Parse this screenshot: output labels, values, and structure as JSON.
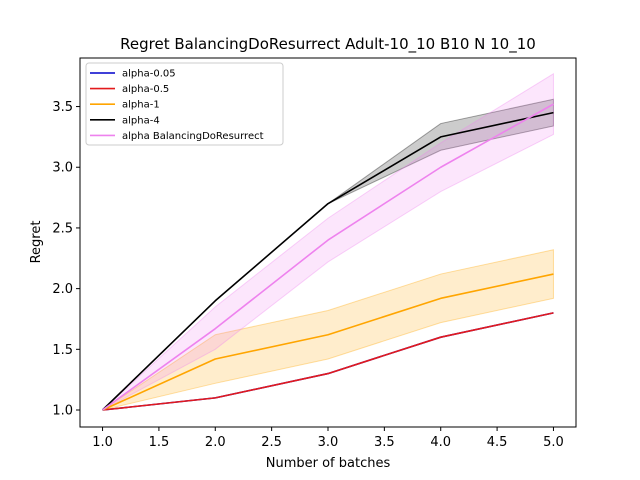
{
  "chart_data": {
    "type": "line",
    "title": "Regret BalancingDoResurrect Adult-10_10 B10 N 10_10",
    "xlabel": "Number of batches",
    "ylabel": "Regret",
    "xlim": [
      0.8,
      5.2
    ],
    "ylim": [
      0.86,
      3.9
    ],
    "xticks": [
      1.0,
      1.5,
      2.0,
      2.5,
      3.0,
      3.5,
      4.0,
      4.5,
      5.0
    ],
    "xtick_labels": [
      "1.0",
      "1.5",
      "2.0",
      "2.5",
      "3.0",
      "3.5",
      "4.0",
      "4.5",
      "5.0"
    ],
    "yticks": [
      1.0,
      1.5,
      2.0,
      2.5,
      3.0,
      3.5
    ],
    "ytick_labels": [
      "1.0",
      "1.5",
      "2.0",
      "2.5",
      "3.0",
      "3.5"
    ],
    "grid": false,
    "legend_position": "top-left",
    "x": [
      1,
      2,
      3,
      4,
      5
    ],
    "series": [
      {
        "name": "alpha-0.05",
        "color": "#0000cc",
        "values": [
          1.0,
          1.1,
          1.3,
          1.6,
          1.8
        ],
        "lower": [
          1.0,
          1.1,
          1.3,
          1.6,
          1.8
        ],
        "upper": [
          1.0,
          1.1,
          1.3,
          1.6,
          1.8
        ]
      },
      {
        "name": "alpha-0.5",
        "color": "#e31a1c",
        "values": [
          1.0,
          1.1,
          1.3,
          1.6,
          1.8
        ],
        "lower": [
          1.0,
          1.1,
          1.3,
          1.6,
          1.8
        ],
        "upper": [
          1.0,
          1.1,
          1.3,
          1.6,
          1.8
        ]
      },
      {
        "name": "alpha-1",
        "color": "#ffa500",
        "values": [
          1.0,
          1.42,
          1.62,
          1.92,
          2.12
        ],
        "lower": [
          1.0,
          1.22,
          1.42,
          1.72,
          1.92
        ],
        "upper": [
          1.0,
          1.62,
          1.82,
          2.12,
          2.32
        ]
      },
      {
        "name": "alpha-4",
        "color": "#000000",
        "values": [
          1.0,
          1.9,
          2.7,
          3.25,
          3.45
        ],
        "lower": [
          1.0,
          1.9,
          2.7,
          3.14,
          3.34
        ],
        "upper": [
          1.0,
          1.9,
          2.7,
          3.36,
          3.56
        ]
      },
      {
        "name": "alpha BalancingDoResurrect",
        "color": "#ee82ee",
        "values": [
          1.0,
          1.67,
          2.4,
          3.0,
          3.52
        ],
        "lower": [
          1.0,
          1.5,
          2.22,
          2.8,
          3.27
        ],
        "upper": [
          1.0,
          1.85,
          2.58,
          3.2,
          3.77
        ]
      }
    ]
  }
}
